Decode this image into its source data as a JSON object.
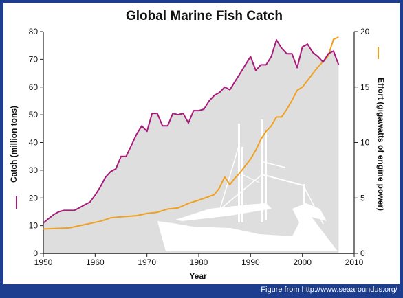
{
  "page": {
    "background_color": "#1d3e8e",
    "source_credit": "Figure from http://www.seaaroundus.org/"
  },
  "chart_data": {
    "type": "line",
    "title": "Global Marine Fish Catch",
    "xlabel": "Year",
    "ylabel_left": "Catch (million tons)",
    "ylabel_right": "Effort (gigawatts of engine power)",
    "xlim": [
      1950,
      2010
    ],
    "ylim_left": [
      0,
      80
    ],
    "ylim_right": [
      0,
      20
    ],
    "x_ticks": [
      "1950",
      "1960",
      "1970",
      "1980",
      "1990",
      "2000",
      "2010"
    ],
    "y_ticks_left": [
      "0",
      "10",
      "20",
      "30",
      "40",
      "50",
      "60",
      "70",
      "80"
    ],
    "y_ticks_right": [
      "0",
      "5",
      "10",
      "15",
      "20"
    ],
    "colors": {
      "catch": "#a8197c",
      "effort": "#f0a020",
      "catch_area": "#dedede",
      "ship": "#c6c6c6"
    },
    "series": [
      {
        "name": "Catch",
        "axis": "left",
        "x": [
          1950,
          1951,
          1952,
          1953,
          1954,
          1955,
          1956,
          1957,
          1958,
          1959,
          1960,
          1961,
          1962,
          1963,
          1964,
          1965,
          1966,
          1967,
          1968,
          1969,
          1970,
          1971,
          1972,
          1973,
          1974,
          1975,
          1976,
          1977,
          1978,
          1979,
          1980,
          1981,
          1982,
          1983,
          1984,
          1985,
          1986,
          1987,
          1988,
          1989,
          1990,
          1991,
          1992,
          1993,
          1994,
          1995,
          1996,
          1997,
          1998,
          1999,
          2000,
          2001,
          2002,
          2003,
          2004,
          2005,
          2006,
          2007
        ],
        "values": [
          11,
          12.5,
          14,
          15,
          15.5,
          15.5,
          15.5,
          16.5,
          17.5,
          18.5,
          21,
          24,
          27.5,
          29.5,
          30.5,
          35,
          35,
          39,
          43,
          46,
          44,
          50.5,
          50.5,
          46,
          46,
          50.5,
          50,
          50.5,
          47,
          51.5,
          51.5,
          52,
          55,
          57,
          58,
          60,
          59,
          62,
          65,
          68,
          71,
          66,
          68,
          68,
          71,
          77,
          74,
          72,
          72,
          67,
          74.5,
          75.5,
          72.5,
          71,
          69,
          72,
          73,
          68
        ]
      },
      {
        "name": "Effort",
        "axis": "right",
        "x": [
          1950,
          1955,
          1958,
          1960,
          1961,
          1963,
          1965,
          1968,
          1970,
          1972,
          1974,
          1976,
          1978,
          1980,
          1983,
          1984,
          1985,
          1986,
          1987,
          1988,
          1989,
          1990,
          1991,
          1992,
          1993,
          1994,
          1995,
          1996,
          1997,
          1998,
          1999,
          2000,
          2001,
          2002,
          2003,
          2004,
          2005,
          2006,
          2007
        ],
        "values": [
          2.2,
          2.3,
          2.6,
          2.8,
          2.9,
          3.2,
          3.3,
          3.4,
          3.6,
          3.7,
          4.0,
          4.1,
          4.5,
          4.8,
          5.3,
          5.9,
          6.9,
          6.2,
          6.8,
          7.3,
          7.9,
          8.5,
          9.3,
          10.3,
          11.0,
          11.5,
          12.3,
          12.3,
          13.0,
          13.8,
          14.7,
          15.0,
          15.6,
          16.2,
          16.8,
          17.3,
          17.8,
          19.3,
          19.5
        ]
      }
    ],
    "legend": "axis-side markers"
  }
}
